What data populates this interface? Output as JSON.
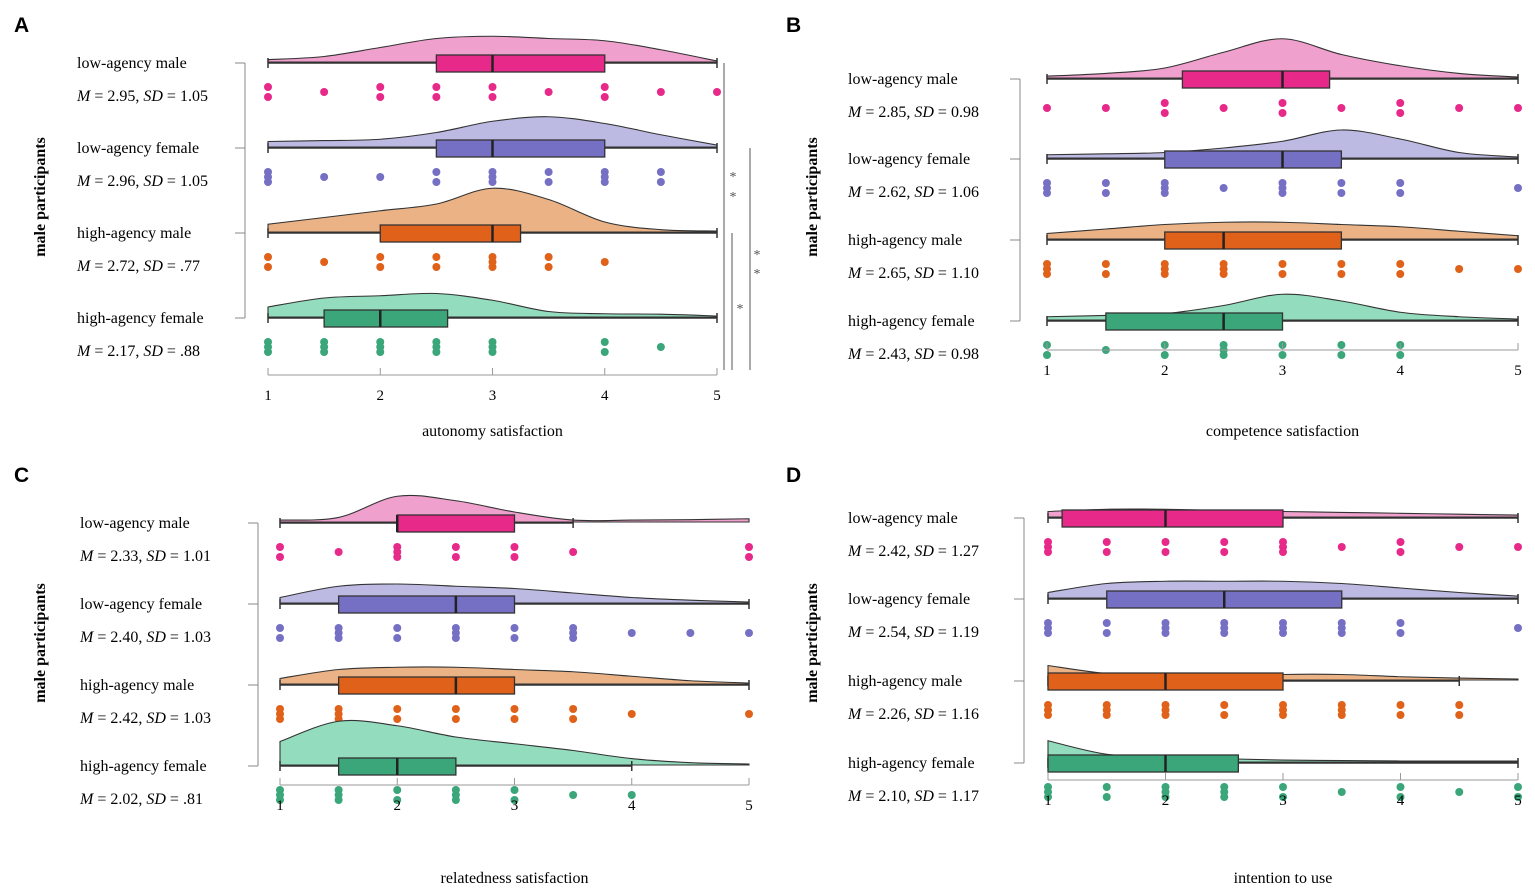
{
  "chart_data": [
    {
      "panel": "A",
      "type": "raincloud",
      "xlabel": "autonomy satisfaction",
      "ylabel": "male participants",
      "xlim": [
        1,
        5
      ],
      "xticks": [
        "1",
        "2",
        "3",
        "4",
        "5"
      ],
      "groups": [
        {
          "label": "low-agency male",
          "M": "2.95",
          "SD": "1.05",
          "color": "#e7298a",
          "cloud": "#f0a0cc",
          "box": {
            "whisker_low": 1,
            "q1": 2.5,
            "median": 3,
            "q3": 4,
            "whisker_high": 5
          },
          "density": [
            0.03,
            0.1,
            0.3,
            0.5,
            0.55,
            0.5,
            0.45,
            0.25,
            0
          ],
          "points": [
            [
              1,
              2
            ],
            [
              1.5,
              1
            ],
            [
              2,
              2
            ],
            [
              2.5,
              2
            ],
            [
              3,
              2
            ],
            [
              3.5,
              1
            ],
            [
              4,
              2
            ],
            [
              4.5,
              1
            ],
            [
              5,
              1
            ]
          ]
        },
        {
          "label": "low-agency female",
          "M": "2.96",
          "SD": "1.05",
          "color": "#7570c4",
          "cloud": "#bcbae2",
          "box": {
            "whisker_low": 1,
            "q1": 2.5,
            "median": 3,
            "q3": 4,
            "whisker_high": 5
          },
          "density": [
            0.1,
            0.12,
            0.15,
            0.3,
            0.55,
            0.65,
            0.5,
            0.25,
            0.02
          ],
          "points": [
            [
              1,
              3
            ],
            [
              1.5,
              1
            ],
            [
              2,
              1
            ],
            [
              2.5,
              2
            ],
            [
              3,
              3
            ],
            [
              3.5,
              2
            ],
            [
              4,
              3
            ],
            [
              4.5,
              2
            ]
          ]
        },
        {
          "label": "high-agency male",
          "M": "2.72",
          "SD": ".77",
          "color": "#e0621a",
          "cloud": "#ebb385",
          "box": {
            "whisker_low": 1,
            "q1": 2,
            "median": 3,
            "q3": 3.25,
            "whisker_high": 5
          },
          "density": [
            0.15,
            0.3,
            0.45,
            0.6,
            0.95,
            0.7,
            0.2,
            0.03,
            0
          ],
          "points": [
            [
              1,
              2
            ],
            [
              1.5,
              1
            ],
            [
              2,
              2
            ],
            [
              2.5,
              2
            ],
            [
              3,
              3
            ],
            [
              3.5,
              2
            ],
            [
              4,
              1
            ]
          ]
        },
        {
          "label": "high-agency female",
          "M": "2.17",
          "SD": ".88",
          "color": "#3aa67a",
          "cloud": "#93dcbd",
          "box": {
            "whisker_low": 1,
            "q1": 1.5,
            "median": 2,
            "q3": 2.6,
            "whisker_high": 5
          },
          "density": [
            0.2,
            0.4,
            0.45,
            0.5,
            0.35,
            0.1,
            0.05,
            0.04,
            0
          ],
          "points": [
            [
              1,
              3
            ],
            [
              1.5,
              3
            ],
            [
              2,
              3
            ],
            [
              2.5,
              3
            ],
            [
              3,
              3
            ],
            [
              4,
              2
            ],
            [
              4.5,
              1
            ]
          ]
        }
      ],
      "significance": [
        {
          "from": "low-agency male",
          "to": "high-agency female",
          "label": "**"
        },
        {
          "from": "low-agency female",
          "to": "high-agency female",
          "label": "**"
        },
        {
          "from": "high-agency male",
          "to": "high-agency female",
          "label": "*"
        }
      ]
    },
    {
      "panel": "B",
      "type": "raincloud",
      "xlabel": "competence satisfaction",
      "ylabel": "male participants",
      "xlim": [
        1,
        5
      ],
      "xticks": [
        "1",
        "2",
        "3",
        "4",
        "5"
      ],
      "groups": [
        {
          "label": "low-agency male",
          "M": "2.85",
          "SD": "0.98",
          "color": "#e7298a",
          "cloud": "#f0a0cc",
          "box": {
            "whisker_low": 1,
            "q1": 2.15,
            "median": 3,
            "q3": 3.4,
            "whisker_high": 5
          },
          "density": [
            0.02,
            0.08,
            0.2,
            0.55,
            0.85,
            0.5,
            0.25,
            0.08,
            0
          ],
          "points": [
            [
              1,
              1
            ],
            [
              1.5,
              1
            ],
            [
              2,
              2
            ],
            [
              2.5,
              1
            ],
            [
              3,
              2
            ],
            [
              3.5,
              1
            ],
            [
              4,
              2
            ],
            [
              4.5,
              1
            ],
            [
              5,
              1
            ]
          ]
        },
        {
          "label": "low-agency female",
          "M": "2.62",
          "SD": "1.06",
          "color": "#7570c4",
          "cloud": "#bcbae2",
          "box": {
            "whisker_low": 1,
            "q1": 2,
            "median": 3,
            "q3": 3.5,
            "whisker_high": 5
          },
          "density": [
            0.05,
            0.07,
            0.1,
            0.2,
            0.35,
            0.6,
            0.4,
            0.1,
            0
          ],
          "points": [
            [
              1,
              3
            ],
            [
              1.5,
              2
            ],
            [
              2,
              3
            ],
            [
              2.5,
              1
            ],
            [
              3,
              3
            ],
            [
              3.5,
              2
            ],
            [
              4,
              2
            ],
            [
              5,
              1
            ]
          ]
        },
        {
          "label": "high-agency male",
          "M": "2.65",
          "SD": "1.10",
          "color": "#e0621a",
          "cloud": "#ebb385",
          "box": {
            "whisker_low": 1,
            "q1": 2,
            "median": 2.5,
            "q3": 3.5,
            "whisker_high": 5
          },
          "density": [
            0.1,
            0.2,
            0.3,
            0.35,
            0.35,
            0.3,
            0.25,
            0.15,
            0.05
          ],
          "points": [
            [
              1,
              3
            ],
            [
              1.5,
              2
            ],
            [
              2,
              3
            ],
            [
              2.5,
              3
            ],
            [
              3,
              2
            ],
            [
              3.5,
              2
            ],
            [
              4,
              2
            ],
            [
              4.5,
              1
            ],
            [
              5,
              1
            ]
          ]
        },
        {
          "label": "high-agency female",
          "M": "2.43",
          "SD": "0.98",
          "color": "#3aa67a",
          "cloud": "#93dcbd",
          "box": {
            "whisker_low": 1,
            "q1": 1.5,
            "median": 2.5,
            "q3": 3,
            "whisker_high": 5
          },
          "density": [
            0.05,
            0.08,
            0.12,
            0.3,
            0.55,
            0.4,
            0.15,
            0.05,
            0
          ],
          "points": [
            [
              1,
              2
            ],
            [
              1.5,
              1
            ],
            [
              2,
              2
            ],
            [
              2.5,
              3
            ],
            [
              3,
              2
            ],
            [
              3.5,
              2
            ],
            [
              4,
              2
            ]
          ]
        }
      ]
    },
    {
      "panel": "C",
      "type": "raincloud",
      "xlabel": "relatedness satisfaction",
      "ylabel": "male participants",
      "xlim": [
        1,
        5
      ],
      "xticks": [
        "1",
        "2",
        "3",
        "4",
        "5"
      ],
      "groups": [
        {
          "label": "low-agency male",
          "M": "2.33",
          "SD": "1.01",
          "color": "#e7298a",
          "cloud": "#f0a0cc",
          "box": {
            "whisker_low": 1,
            "q1": 2,
            "median": 2,
            "q3": 3,
            "whisker_high": 3.5
          },
          "density": [
            0.02,
            0.08,
            0.55,
            0.45,
            0.2,
            0.02,
            0.02,
            0.03,
            0.05
          ],
          "points": [
            [
              1,
              2
            ],
            [
              1.5,
              1
            ],
            [
              2,
              3
            ],
            [
              2.5,
              2
            ],
            [
              3,
              2
            ],
            [
              3.5,
              1
            ],
            [
              5,
              2
            ]
          ]
        },
        {
          "label": "low-agency female",
          "M": "2.40",
          "SD": "1.03",
          "color": "#7570c4",
          "cloud": "#bcbae2",
          "box": {
            "whisker_low": 1,
            "q1": 1.5,
            "median": 2.5,
            "q3": 3,
            "whisker_high": 5
          },
          "density": [
            0.1,
            0.35,
            0.4,
            0.35,
            0.3,
            0.2,
            0.1,
            0.04,
            0
          ],
          "points": [
            [
              1,
              2
            ],
            [
              1.5,
              3
            ],
            [
              2,
              2
            ],
            [
              2.5,
              3
            ],
            [
              3,
              2
            ],
            [
              3.5,
              3
            ],
            [
              4,
              1
            ],
            [
              4.5,
              1
            ],
            [
              5,
              1
            ]
          ]
        },
        {
          "label": "high-agency male",
          "M": "2.42",
          "SD": "1.03",
          "color": "#e0621a",
          "cloud": "#ebb385",
          "box": {
            "whisker_low": 1,
            "q1": 1.5,
            "median": 2.5,
            "q3": 3,
            "whisker_high": 5
          },
          "density": [
            0.1,
            0.3,
            0.35,
            0.35,
            0.3,
            0.25,
            0.15,
            0.05,
            0
          ],
          "points": [
            [
              1,
              3
            ],
            [
              1.5,
              3
            ],
            [
              2,
              2
            ],
            [
              2.5,
              2
            ],
            [
              3,
              2
            ],
            [
              3.5,
              2
            ],
            [
              4,
              1
            ],
            [
              5,
              1
            ]
          ]
        },
        {
          "label": "high-agency female",
          "M": "2.02",
          "SD": ".81",
          "color": "#3aa67a",
          "cloud": "#93dcbd",
          "box": {
            "whisker_low": 1,
            "q1": 1.5,
            "median": 2,
            "q3": 2.5,
            "whisker_high": 4
          },
          "density": [
            0.5,
            0.95,
            0.85,
            0.6,
            0.45,
            0.3,
            0.12,
            0.03,
            0
          ],
          "points": [
            [
              1,
              3
            ],
            [
              1.5,
              3
            ],
            [
              2,
              2
            ],
            [
              2.5,
              3
            ],
            [
              3,
              2
            ],
            [
              3.5,
              1
            ],
            [
              4,
              1
            ]
          ]
        }
      ]
    },
    {
      "panel": "D",
      "type": "raincloud",
      "xlabel": "intention to use",
      "ylabel": "male participants",
      "xlim": [
        1,
        5
      ],
      "xticks": [
        "1",
        "2",
        "3",
        "4",
        "5"
      ],
      "groups": [
        {
          "label": "low-agency male",
          "M": "2.42",
          "SD": "1.27",
          "color": "#e7298a",
          "cloud": "#f0a0cc",
          "box": {
            "whisker_low": 1,
            "q1": 1.12,
            "median": 2,
            "q3": 3,
            "whisker_high": 5
          },
          "density": [
            0.1,
            0.15,
            0.15,
            0.12,
            0.1,
            0.08,
            0.06,
            0.04,
            0.02
          ],
          "points": [
            [
              1,
              3
            ],
            [
              1.5,
              2
            ],
            [
              2,
              2
            ],
            [
              2.5,
              2
            ],
            [
              3,
              3
            ],
            [
              3.5,
              1
            ],
            [
              4,
              2
            ],
            [
              4.5,
              1
            ],
            [
              5,
              1
            ]
          ]
        },
        {
          "label": "low-agency female",
          "M": "2.54",
          "SD": "1.19",
          "color": "#7570c4",
          "cloud": "#bcbae2",
          "box": {
            "whisker_low": 1,
            "q1": 1.5,
            "median": 2.5,
            "q3": 3.5,
            "whisker_high": 5
          },
          "density": [
            0.1,
            0.3,
            0.35,
            0.35,
            0.35,
            0.3,
            0.2,
            0.1,
            0.02
          ],
          "points": [
            [
              1,
              3
            ],
            [
              1.5,
              2
            ],
            [
              2,
              3
            ],
            [
              2.5,
              3
            ],
            [
              3,
              3
            ],
            [
              3.5,
              3
            ],
            [
              4,
              2
            ],
            [
              5,
              1
            ]
          ]
        },
        {
          "label": "high-agency male",
          "M": "2.26",
          "SD": "1.16",
          "color": "#e0621a",
          "cloud": "#ebb385",
          "box": {
            "whisker_low": 1,
            "q1": 1,
            "median": 2,
            "q3": 3,
            "whisker_high": 4.5
          },
          "density": [
            0.3,
            0.12,
            0.06,
            0.05,
            0.1,
            0.1,
            0.05,
            0.02,
            0
          ],
          "points": [
            [
              1,
              3
            ],
            [
              1.5,
              3
            ],
            [
              2,
              3
            ],
            [
              2.5,
              2
            ],
            [
              3,
              3
            ],
            [
              3.5,
              3
            ],
            [
              4,
              2
            ],
            [
              4.5,
              2
            ]
          ]
        },
        {
          "label": "high-agency female",
          "M": "2.10",
          "SD": "1.17",
          "color": "#3aa67a",
          "cloud": "#93dcbd",
          "box": {
            "whisker_low": 1,
            "q1": 1,
            "median": 2,
            "q3": 2.62,
            "whisker_high": 5
          },
          "density": [
            0.45,
            0.15,
            0.1,
            0.05,
            0.02,
            0.01,
            0,
            0,
            0
          ],
          "points": [
            [
              1,
              3
            ],
            [
              1.5,
              2
            ],
            [
              2,
              3
            ],
            [
              2.5,
              3
            ],
            [
              3,
              2
            ],
            [
              3.5,
              1
            ],
            [
              4,
              2
            ],
            [
              4.5,
              1
            ],
            [
              5,
              2
            ]
          ]
        }
      ]
    }
  ]
}
